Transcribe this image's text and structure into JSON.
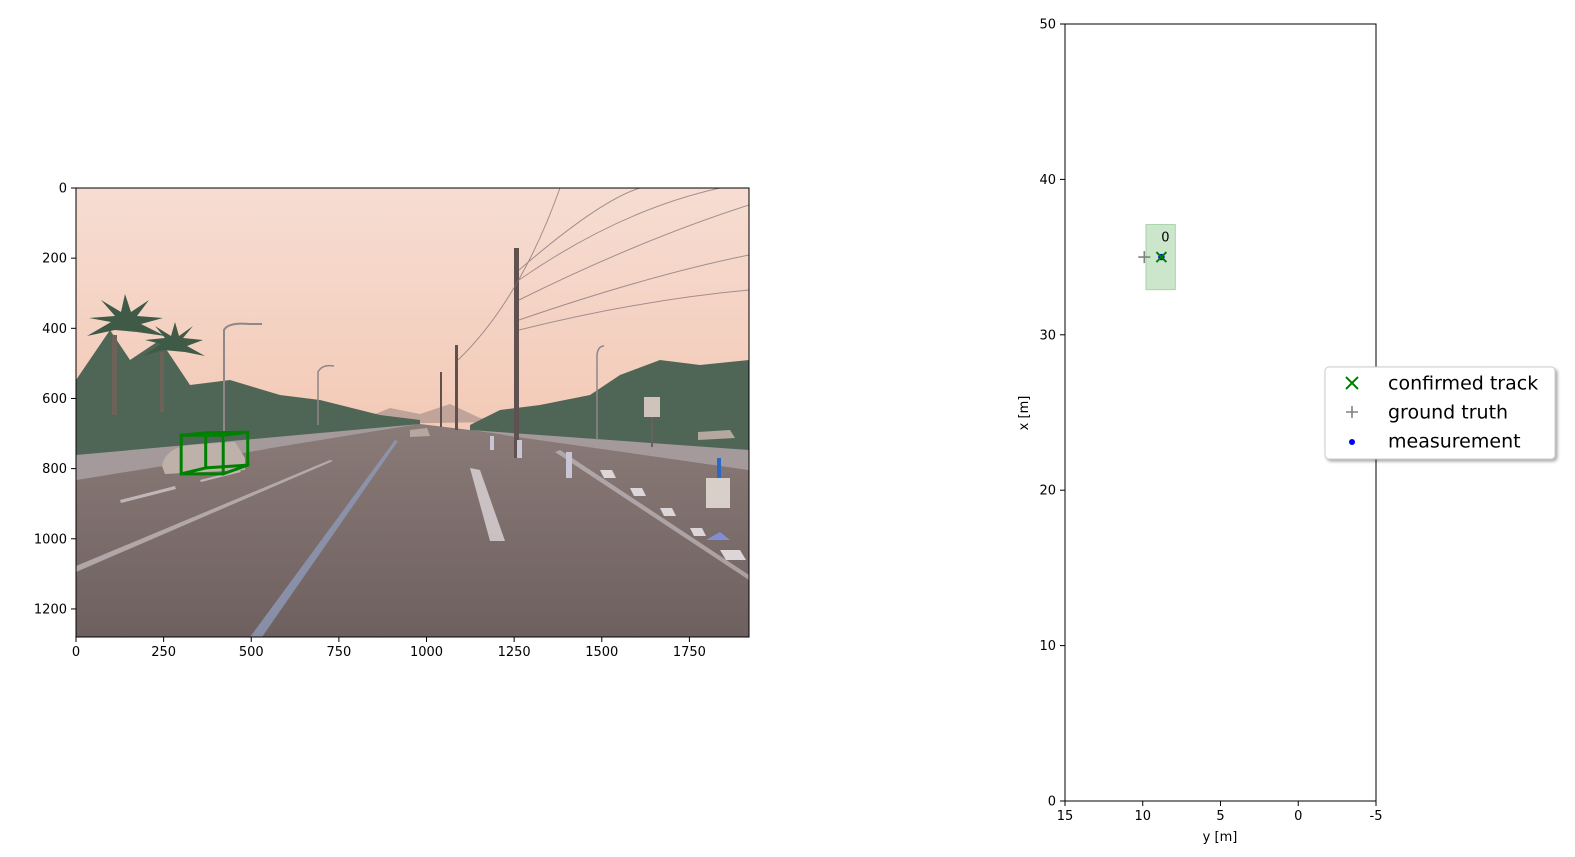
{
  "chart_data": [
    {
      "type": "image",
      "xlim": [
        0,
        1920
      ],
      "ylim": [
        1280,
        0
      ],
      "x_ticks": [
        "0",
        "250",
        "500",
        "750",
        "1000",
        "1250",
        "1500",
        "1750"
      ],
      "y_ticks": [
        "0",
        "200",
        "400",
        "600",
        "800",
        "1000",
        "1200"
      ],
      "x_tick_values": [
        0,
        250,
        500,
        750,
        1000,
        1250,
        1500,
        1750
      ],
      "y_tick_values": [
        0,
        200,
        400,
        600,
        800,
        1000,
        1200
      ],
      "boxes": [
        {
          "color": "#008000",
          "corners": [
            [
              300,
              705
            ],
            [
              300,
              815
            ],
            [
              420,
              815
            ],
            [
              420,
              705
            ],
            [
              370,
              698
            ],
            [
              370,
              798
            ],
            [
              490,
              790
            ],
            [
              490,
              696
            ]
          ]
        }
      ]
    },
    {
      "type": "scatter",
      "xlabel": "y [m]",
      "ylabel": "x [m]",
      "xlim": [
        15,
        -5
      ],
      "ylim": [
        0,
        50
      ],
      "x_ticks": [
        "15",
        "10",
        "5",
        "0",
        "-5"
      ],
      "y_ticks": [
        "0",
        "10",
        "20",
        "30",
        "40",
        "50"
      ],
      "x_tick_values": [
        15,
        10,
        5,
        0,
        -5
      ],
      "y_tick_values": [
        0,
        10,
        20,
        30,
        40,
        50
      ],
      "tracks": [
        {
          "id": "0",
          "y": 8.8,
          "x": 35.0,
          "extent_y": [
            7.9,
            9.8
          ],
          "extent_x": [
            32.9,
            37.1
          ]
        }
      ],
      "ground_truth": [
        {
          "y": 9.9,
          "x": 35.0
        }
      ],
      "measurements": [
        {
          "y": 8.8,
          "x": 35.0
        }
      ],
      "legend": {
        "placement": "center-right outside",
        "entries": [
          {
            "label": "confirmed track",
            "marker": "x",
            "color": "#008000"
          },
          {
            "label": "ground truth",
            "marker": "+",
            "color": "#808080"
          },
          {
            "label": "measurement",
            "marker": "dot",
            "color": "#0000ff"
          }
        ]
      }
    }
  ]
}
